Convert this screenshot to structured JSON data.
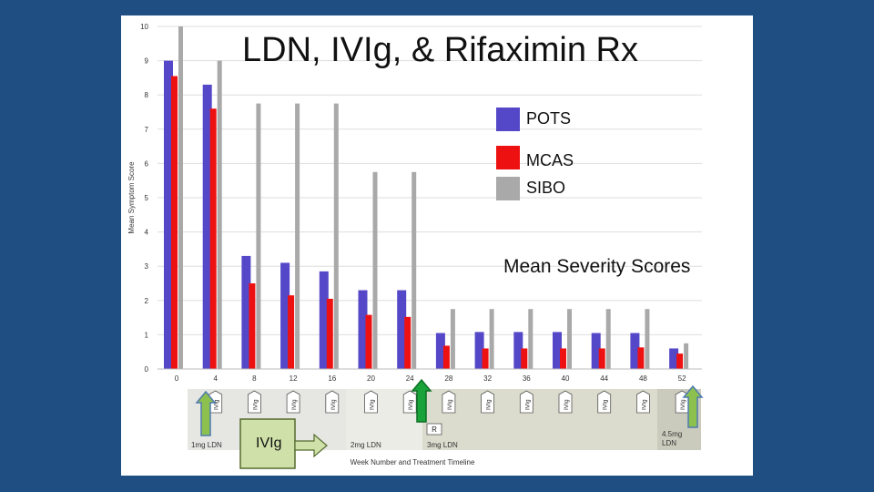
{
  "chart_data": {
    "type": "bar",
    "title": "LDN, IVIg, & Rifaximin Rx",
    "subtitle": "Mean Severity Scores",
    "ylabel": "Mean Symptom Score",
    "xlabel": "Week Number and Treatment Timeline",
    "ylim": [
      0,
      10
    ],
    "yticks": [
      "0",
      "1",
      "2",
      "3",
      "4",
      "5",
      "6",
      "7",
      "8",
      "9",
      "10"
    ],
    "categories": [
      "0",
      "4",
      "8",
      "12",
      "16",
      "20",
      "24",
      "28",
      "32",
      "36",
      "40",
      "44",
      "48",
      "52"
    ],
    "series": [
      {
        "name": "POTS",
        "color": "#5548c8",
        "values": [
          9.0,
          8.3,
          3.3,
          3.1,
          2.85,
          2.3,
          2.3,
          1.05,
          1.08,
          1.08,
          1.08,
          1.05,
          1.05,
          0.6
        ]
      },
      {
        "name": "MCAS",
        "color": "#ee1111",
        "values": [
          8.55,
          7.6,
          2.5,
          2.15,
          2.05,
          1.58,
          1.52,
          0.68,
          0.6,
          0.6,
          0.6,
          0.6,
          0.63,
          0.45
        ]
      },
      {
        "name": "SIBO",
        "color": "#a9a9a9",
        "values": [
          10.0,
          9.0,
          7.75,
          7.75,
          7.75,
          5.75,
          5.75,
          1.75,
          1.75,
          1.75,
          1.75,
          1.75,
          1.75,
          0.75
        ]
      }
    ]
  },
  "timeline": {
    "ivig_label": "IVIg",
    "ivig_callout": "IVIg",
    "rifaximin_label": "R",
    "phases": [
      {
        "label": "1mg LDN",
        "color": "#e6e6e2"
      },
      {
        "label": "2mg LDN",
        "color": "#ecece6"
      },
      {
        "label": "3mg LDN",
        "color": "#dcdcce"
      },
      {
        "label": "4.5mg LDN",
        "color": "#cbcbbd"
      }
    ]
  },
  "colors": {
    "background": "#1f4e83",
    "arrow_fill": "#8dc14f",
    "arrow_stroke": "#4f7ab0",
    "rx_arrow": "#1aa33a",
    "callout_fill": "#cfe0a8"
  }
}
